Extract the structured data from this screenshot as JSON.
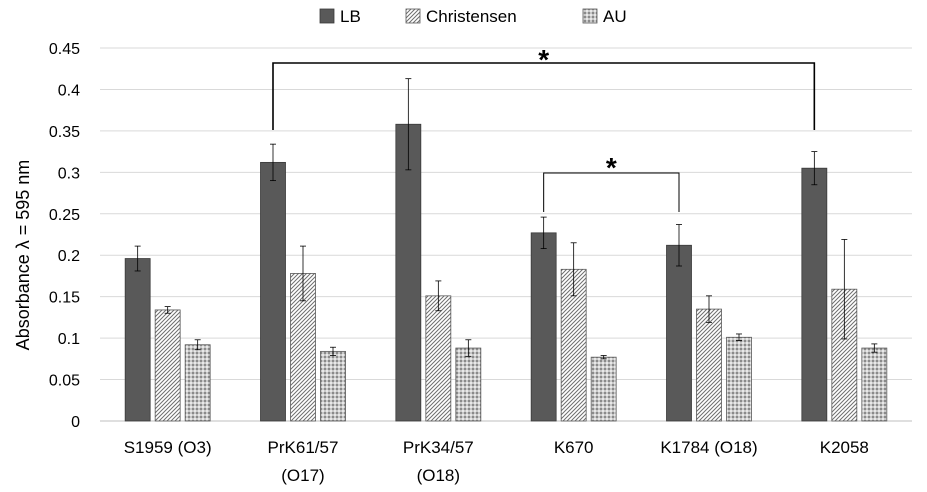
{
  "chart_data": {
    "type": "bar",
    "title": "",
    "ylabel": "Absorbance  λ = 595 nm",
    "xlabel": "",
    "ylim": [
      0,
      0.45
    ],
    "yticks": [
      "0",
      "0.05",
      "0.1",
      "0.15",
      "0.2",
      "0.25",
      "0.3",
      "0.35",
      "0.4",
      "0.45"
    ],
    "grid": true,
    "legend_position": "top",
    "categories": [
      {
        "line1": "S1959 (O3)",
        "line2": ""
      },
      {
        "line1": "PrK61/57",
        "line2": "(O17)"
      },
      {
        "line1": "PrK34/57",
        "line2": "(O18)"
      },
      {
        "line1": "K670",
        "line2": ""
      },
      {
        "line1": "K1784 (O18)",
        "line2": ""
      },
      {
        "line1": "K2058",
        "line2": ""
      }
    ],
    "series": [
      {
        "name": "LB",
        "color": "#595959",
        "pattern": "solid",
        "values": [
          0.196,
          0.312,
          0.358,
          0.227,
          0.212,
          0.305
        ],
        "errors": [
          0.015,
          0.022,
          0.055,
          0.019,
          0.025,
          0.02
        ]
      },
      {
        "name": "Christensen",
        "color": "#d9d9d9",
        "pattern": "diagonal-hatch",
        "values": [
          0.134,
          0.178,
          0.151,
          0.183,
          0.135,
          0.159
        ],
        "errors": [
          0.004,
          0.033,
          0.018,
          0.032,
          0.016,
          0.06
        ]
      },
      {
        "name": "AU",
        "color": "#bfbfbf",
        "pattern": "dotted-grid",
        "values": [
          0.092,
          0.084,
          0.088,
          0.077,
          0.101,
          0.088
        ],
        "errors": [
          0.006,
          0.005,
          0.01,
          0.002,
          0.004,
          0.005
        ]
      }
    ],
    "annotations": [
      {
        "text": "*",
        "from_category": 1,
        "to_category": 5,
        "series": "LB"
      },
      {
        "text": "*",
        "from_category": 3,
        "to_category": 4,
        "series": "LB"
      }
    ]
  }
}
